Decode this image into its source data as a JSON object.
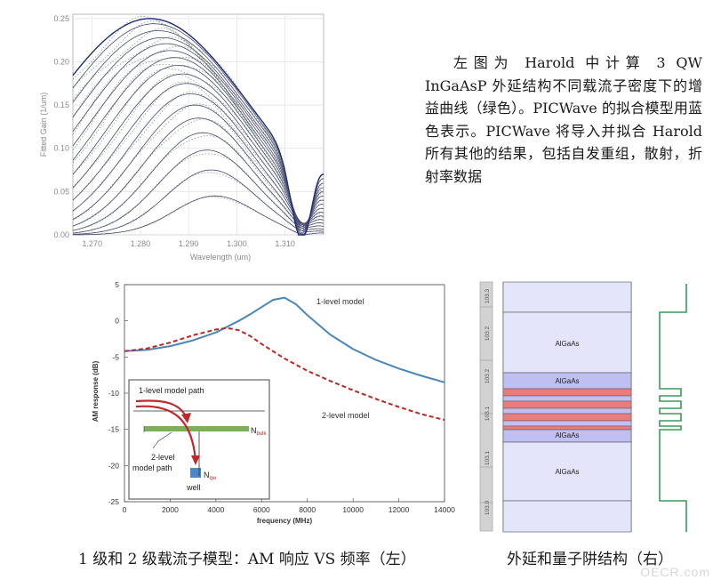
{
  "description": "左图为 Harold 中计算 3 QW InGaAsP 外延结构不同载流子密度下的增益曲线（绿色）。PICWave 的拟合模型用蓝色表示。PICWave 将导入并拟合 Harold 所有其他的结果，包括自发重组，散射，折射率数据",
  "caption_left": "1 级和 2 级载流子模型：AM 响应 VS 频率（左）",
  "caption_right": "外延和量子阱结构（右）",
  "watermark": "OECR.com",
  "colors": {
    "fit_blue": "#2c3d8f",
    "harold_green": "#6a8a6a",
    "am_blue": "#4a86b8",
    "am_red": "#b82a26",
    "well_blue": "#c7c7f3",
    "qw_red": "#ea7c7c",
    "profile_green": "#3a9a5a"
  },
  "chart_data": [
    {
      "type": "line",
      "title": "",
      "xlabel": "Wavelength (um)",
      "ylabel": "Fitted Gain (1/um)",
      "xlim": [
        1.266,
        1.318
      ],
      "ylim": [
        0.0,
        0.255
      ],
      "x_ticks": [
        "1.270",
        "1.280",
        "1.290",
        "1.300",
        "1.310"
      ],
      "y_ticks": [
        "0.00",
        "0.05",
        "0.10",
        "0.15",
        "0.20",
        "0.25"
      ],
      "grid": true,
      "curve_peak_gains": [
        0.045,
        0.075,
        0.098,
        0.118,
        0.135,
        0.15,
        0.163,
        0.175,
        0.186,
        0.196,
        0.205,
        0.213,
        0.221,
        0.228,
        0.236,
        0.244,
        0.25
      ],
      "series": [
        {
          "name": "",
          "style": "fit",
          "color": "#2c3d8f"
        },
        {
          "name": "",
          "style": "harold",
          "color": "#6a8a6a"
        }
      ]
    },
    {
      "type": "line",
      "title": "",
      "xlabel": "frequency (MHz)",
      "ylabel": "AM response (dB)",
      "xlim": [
        0,
        14000
      ],
      "ylim": [
        -25,
        5
      ],
      "x_ticks": [
        "0",
        "2000",
        "4000",
        "6000",
        "8000",
        "10000",
        "12000",
        "14000"
      ],
      "y_ticks": [
        "5",
        "0",
        "-5",
        "-10",
        "-15",
        "-20",
        "-25"
      ],
      "series": [
        {
          "name": "1-level model",
          "style": "solid",
          "color": "#4a86b8",
          "x": [
            0,
            1000,
            2000,
            3000,
            4000,
            5000,
            5500,
            6000,
            6500,
            7000,
            7500,
            8000,
            9000,
            10000,
            11000,
            12000,
            13000,
            14000
          ],
          "y": [
            -4.2,
            -4.0,
            -3.5,
            -2.7,
            -1.6,
            0.0,
            0.9,
            1.9,
            2.9,
            3.2,
            2.3,
            0.8,
            -1.9,
            -3.9,
            -5.4,
            -6.6,
            -7.6,
            -8.5
          ]
        },
        {
          "name": "2-level model",
          "style": "dashed",
          "color": "#b82a26",
          "x": [
            0,
            1000,
            2000,
            3000,
            4000,
            4500,
            5000,
            5500,
            6000,
            7000,
            8000,
            9000,
            10000,
            11000,
            12000,
            13000,
            14000
          ],
          "y": [
            -4.2,
            -3.8,
            -3.0,
            -2.0,
            -1.2,
            -1.0,
            -1.3,
            -2.1,
            -3.2,
            -5.2,
            -6.9,
            -8.3,
            -9.6,
            -10.8,
            -11.9,
            -12.9,
            -13.7
          ]
        }
      ],
      "annotations": {
        "label_1level": "1-level model",
        "label_2level": "2-level model"
      },
      "inset": {
        "path1": "1-level model path",
        "path2_line1": "2-level",
        "path2_line2": "model path",
        "nbulk_main": "N",
        "nbulk_sub": "bulk",
        "nqw_main": "N",
        "nqw_sub": "qw",
        "well": "well"
      }
    },
    {
      "type": "diagram",
      "axis_ticks": [
        "103.0",
        "103.1",
        "103.1",
        "103.2",
        "103.2",
        "103.3"
      ],
      "layers": [
        "AlGaAs",
        "AlGaAs",
        "AlGaAs",
        "AlGaAs"
      ]
    }
  ]
}
